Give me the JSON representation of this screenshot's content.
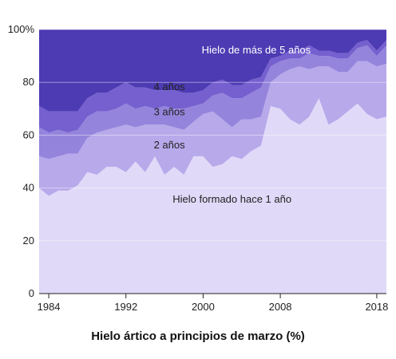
{
  "chart_data": {
    "type": "area",
    "stacked": true,
    "title": "Hielo ártico a principios de marzo (%)",
    "x": [
      1983,
      1984,
      1985,
      1986,
      1987,
      1988,
      1989,
      1990,
      1991,
      1992,
      1993,
      1994,
      1995,
      1996,
      1997,
      1998,
      1999,
      2000,
      2001,
      2002,
      2003,
      2004,
      2005,
      2006,
      2007,
      2008,
      2009,
      2010,
      2011,
      2012,
      2013,
      2014,
      2015,
      2016,
      2017,
      2018,
      2019
    ],
    "x_ticks": [
      "1984",
      "1992",
      "2000",
      "2008",
      "2018"
    ],
    "x_tick_values": [
      1984,
      1992,
      2000,
      2008,
      2018
    ],
    "y_ticks": [
      "0",
      "20",
      "40",
      "60",
      "80",
      "100%"
    ],
    "y_tick_values": [
      0,
      20,
      40,
      60,
      80,
      100
    ],
    "ylim": [
      0,
      100
    ],
    "xlim": [
      1983,
      2019
    ],
    "series": [
      {
        "name": "Hielo formado hace 1 año",
        "color": "#e0d9f8",
        "values": [
          40,
          37,
          39,
          39,
          41,
          46,
          45,
          48,
          48,
          46,
          50,
          46,
          52,
          45,
          48,
          45,
          52,
          52,
          48,
          49,
          52,
          51,
          54,
          56,
          71,
          70,
          66,
          64,
          67,
          74,
          64,
          66,
          69,
          72,
          68,
          66,
          67
        ]
      },
      {
        "name": "2 años",
        "color": "#b7a9ea",
        "values": [
          12,
          14,
          13,
          14,
          12,
          13,
          16,
          14,
          15,
          18,
          13,
          18,
          12,
          19,
          15,
          17,
          13,
          16,
          21,
          17,
          11,
          15,
          12,
          11,
          9,
          13,
          19,
          22,
          18,
          12,
          22,
          18,
          15,
          16,
          20,
          20,
          20
        ]
      },
      {
        "name": "3 años",
        "color": "#9584dc",
        "values": [
          11,
          10,
          10,
          8,
          9,
          8,
          8,
          7,
          7,
          8,
          7,
          7,
          6,
          7,
          7,
          8,
          6,
          4,
          6,
          10,
          11,
          8,
          10,
          11,
          6,
          5,
          4,
          3,
          6,
          4,
          4,
          5,
          5,
          5,
          6,
          4,
          7
        ]
      },
      {
        "name": "4 años",
        "color": "#7660cf",
        "values": [
          8,
          8,
          7,
          8,
          7,
          7,
          7,
          7,
          8,
          8,
          8,
          7,
          7,
          6,
          7,
          6,
          5,
          5,
          5,
          5,
          5,
          5,
          5,
          4,
          3,
          2,
          3,
          3,
          3,
          2,
          2,
          2,
          2,
          2,
          2,
          2,
          2
        ]
      },
      {
        "name": "Hielo de más de 5 años",
        "color": "#4d3bb3",
        "values": [
          29,
          31,
          31,
          31,
          31,
          26,
          24,
          24,
          22,
          20,
          22,
          22,
          23,
          23,
          23,
          24,
          24,
          23,
          20,
          19,
          21,
          21,
          19,
          18,
          11,
          10,
          8,
          8,
          6,
          8,
          8,
          9,
          9,
          5,
          4,
          8,
          4
        ]
      }
    ],
    "labels": [
      {
        "text": "Hielo de más de 5 años",
        "x": 2005.5,
        "y": 91,
        "color": "#ffffff"
      },
      {
        "text": "4 años",
        "x": 1996.5,
        "y": 77,
        "color": "#222222"
      },
      {
        "text": "3 años",
        "x": 1996.5,
        "y": 67.5,
        "color": "#222222"
      },
      {
        "text": "2 años",
        "x": 1996.5,
        "y": 55,
        "color": "#222222"
      },
      {
        "text": "Hielo formado hace 1 año",
        "x": 2003,
        "y": 34.5,
        "color": "#222222"
      }
    ],
    "grid": true
  }
}
